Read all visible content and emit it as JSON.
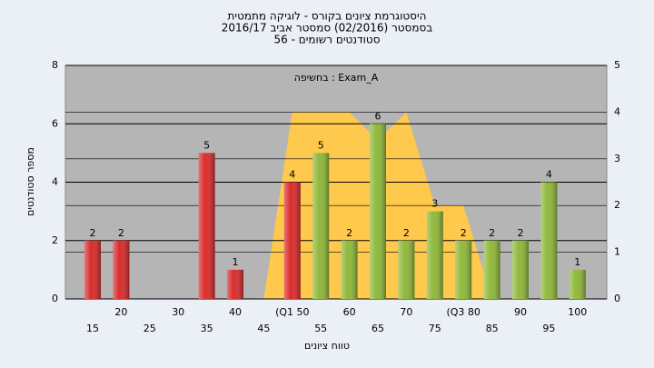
{
  "chart_data": {
    "type": "bar",
    "title": "היסטוגרמת ציונים בקורס - לוגיקה מתמטית",
    "subtitle": "בסמסטר  (02/2016)  סמסטר אביב 2016/17",
    "subtitle2": "סטודנטים רשומים - 56",
    "annotation": "בחשיפה : Exam_A",
    "x_label": "טווח ציונים",
    "y_label": "מספר סטודנטים",
    "categories": [
      "15",
      "20",
      "25",
      "30",
      "35",
      "40",
      "45",
      "(Q1 50",
      "55",
      "60",
      "65",
      "70",
      "75",
      "(Q3 80",
      "85",
      "90",
      "95",
      "100"
    ],
    "values": [
      2,
      2,
      0,
      0,
      5,
      1,
      0,
      4,
      5,
      2,
      6,
      2,
      3,
      2,
      2,
      2,
      4,
      1
    ],
    "colors": [
      "#d92b2b",
      "#d92b2b",
      "#d92b2b",
      "#d92b2b",
      "#d92b2b",
      "#d92b2b",
      "#d92b2b",
      "#d92b2b",
      "#8fb83a",
      "#8fb83a",
      "#8fb83a",
      "#8fb83a",
      "#8fb83a",
      "#8fb83a",
      "#8fb83a",
      "#8fb83a",
      "#8fb83a",
      "#8fb83a"
    ],
    "area": {
      "axis": "y2",
      "color": "#ffc94d",
      "values": [
        null,
        null,
        null,
        null,
        null,
        null,
        0,
        4,
        4,
        4,
        3.4,
        4,
        2,
        2,
        0,
        null,
        null,
        null
      ]
    },
    "ylim": [
      0,
      8
    ],
    "yticks": [
      0,
      2,
      4,
      6,
      8
    ],
    "y2lim": [
      0,
      5
    ],
    "y2ticks": [
      0,
      1,
      2,
      3,
      4,
      5
    ],
    "grid": true
  }
}
